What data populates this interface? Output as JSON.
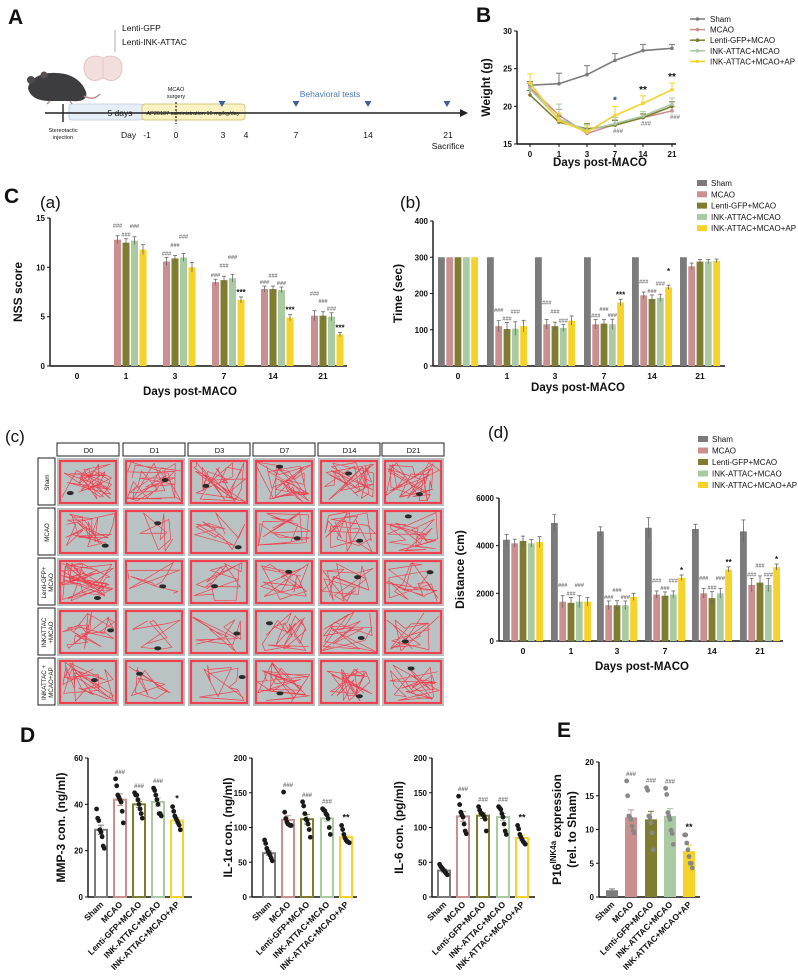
{
  "panel_labels": {
    "A": "A",
    "B": "B",
    "C": "C",
    "Ca": "(a)",
    "Cb": "(b)",
    "Cc": "(c)",
    "Cd": "(d)",
    "D": "D",
    "E": "E"
  },
  "panel_a": {
    "virus_1": "Lenti-GFP",
    "virus_2": "Lenti-INK-ATTAC",
    "injection_1": "Stereotactic",
    "injection_2": "injection",
    "five_days": "5 days",
    "ap_admin": "AP20187 administration 10 mg/kg/day",
    "surgery_1": "MCAO",
    "surgery_2": "surgery",
    "behavioral": "Behavioral tests",
    "day_label": "Day",
    "days": [
      "-1",
      "0",
      "3",
      "4",
      "7",
      "14",
      "21"
    ],
    "sacrifice": "Sacrifice",
    "colors": {
      "timeline_box": "#e6eef8",
      "ap_box": "#fbf3c4",
      "behavioral": "#4a78b5",
      "triangle": "#3d5f9e"
    }
  },
  "groups": {
    "names": [
      "Sham",
      "MCAO",
      "Lenti-GFP+MCAO",
      "INK-ATTAC+MCAO",
      "INK-ATTAC+MCAO+AP"
    ],
    "colors": [
      "#7b7b7b",
      "#c9908f",
      "#7f7d30",
      "#a9caa3",
      "#f6d32b"
    ]
  },
  "panel_c_grid": {
    "columns": [
      "D0",
      "D1",
      "D3",
      "D7",
      "D14",
      "D21"
    ],
    "rows": [
      [
        "Sham"
      ],
      [
        "MCAO"
      ],
      [
        "Lenti-GFP+",
        "MCAO"
      ],
      [
        "INKATTAC",
        "+MCAO"
      ],
      [
        "INKATTAC +",
        "MCAO+AP"
      ]
    ],
    "track_color": "#f0404f",
    "arena_color": "#b9c3c3"
  },
  "chart_data": [
    {
      "id": "B",
      "type": "line",
      "xlabel": "Days post-MACO",
      "ylabel": "Weight (g)",
      "categories": [
        "0",
        "1",
        "3",
        "7",
        "14",
        "21"
      ],
      "ylim": [
        15,
        30
      ],
      "yticks": [
        15,
        20,
        25,
        30
      ],
      "legend": "top-right",
      "series": [
        {
          "name": "Sham",
          "color": "#7b7b7b",
          "values": [
            22.8,
            23.0,
            24.2,
            26.1,
            27.4,
            27.7
          ],
          "err": [
            0.5,
            1.4,
            1.2,
            0.9,
            0.8,
            0.5
          ]
        },
        {
          "name": "MCAO",
          "color": "#c9908f",
          "values": [
            22.5,
            18.8,
            16.4,
            17.6,
            18.5,
            19.4
          ],
          "err": [
            0.6,
            0.8,
            0.6,
            0.6,
            0.5,
            0.6
          ]
        },
        {
          "name": "Lenti-GFP+MCAO",
          "color": "#7f7d30",
          "values": [
            21.5,
            17.9,
            17.0,
            17.5,
            18.5,
            20.0
          ],
          "err": [
            0.6,
            0.8,
            0.7,
            0.6,
            0.5,
            0.6
          ]
        },
        {
          "name": "INK-ATTAC+MCAO",
          "color": "#a9caa3",
          "values": [
            22.3,
            18.3,
            16.8,
            17.7,
            18.7,
            20.3
          ],
          "err": [
            0.7,
            2.0,
            0.8,
            0.8,
            0.6,
            0.8
          ]
        },
        {
          "name": "INK-ATTAC+MCAO+AP",
          "color": "#f6d32b",
          "values": [
            23.1,
            18.1,
            16.6,
            18.8,
            20.4,
            22.2
          ],
          "err": [
            1.2,
            1.0,
            0.8,
            1.2,
            1.0,
            0.9
          ]
        }
      ],
      "annotations_top": [
        "",
        "",
        "",
        "*",
        "**",
        "**"
      ],
      "annotations_bottom": [
        "",
        "",
        "",
        "###",
        "###",
        "###"
      ]
    },
    {
      "id": "Ca",
      "type": "bar",
      "xlabel": "Days post-MACO",
      "ylabel": "NSS score",
      "categories": [
        "0",
        "1",
        "3",
        "7",
        "14",
        "21"
      ],
      "ylim": [
        0,
        15
      ],
      "yticks": [
        0,
        5,
        10,
        15
      ],
      "series": [
        {
          "name": "Sham",
          "color": "#7b7b7b",
          "values": [
            0,
            0,
            0,
            0,
            0,
            0
          ],
          "err": [
            0,
            0,
            0,
            0,
            0,
            0
          ],
          "annotations": [
            "",
            "",
            "",
            "",
            "",
            ""
          ]
        },
        {
          "name": "MCAO",
          "color": "#c9908f",
          "values": [
            0,
            12.8,
            10.6,
            8.5,
            7.8,
            5.1
          ],
          "err": [
            0,
            0.4,
            0.4,
            0.3,
            0.3,
            0.5
          ],
          "annotations": [
            "",
            "###",
            "###",
            "###",
            "###",
            "###"
          ]
        },
        {
          "name": "Lenti-GFP+MCAO",
          "color": "#7f7d30",
          "values": [
            0,
            12.5,
            10.9,
            8.7,
            7.8,
            5.1
          ],
          "err": [
            0,
            0.4,
            0.3,
            0.4,
            0.3,
            0.4
          ],
          "annotations": [
            "",
            "###",
            "###",
            "###",
            "###",
            "###"
          ]
        },
        {
          "name": "INK-ATTAC+MCAO",
          "color": "#a9caa3",
          "values": [
            0,
            12.7,
            11.0,
            8.9,
            7.7,
            5.0
          ],
          "err": [
            0,
            0.4,
            0.4,
            0.4,
            0.3,
            0.4
          ],
          "annotations": [
            "",
            "###",
            "###",
            "###",
            "###",
            "###"
          ]
        },
        {
          "name": "INK-ATTAC+MCAO+AP",
          "color": "#f6d32b",
          "values": [
            0,
            11.8,
            10.0,
            6.7,
            4.9,
            3.2
          ],
          "err": [
            0,
            0.5,
            0.5,
            0.3,
            0.3,
            0.2
          ],
          "annotations": [
            "",
            "",
            "",
            "***",
            "***",
            "***"
          ]
        }
      ]
    },
    {
      "id": "Cb",
      "type": "bar",
      "xlabel": "Days post-MACO",
      "ylabel": "Time (sec)",
      "categories": [
        "0",
        "1",
        "3",
        "7",
        "14",
        "21"
      ],
      "ylim": [
        0,
        400
      ],
      "yticks": [
        0,
        100,
        200,
        300,
        400
      ],
      "legend": "top-right",
      "series": [
        {
          "name": "Sham",
          "color": "#7b7b7b",
          "values": [
            300,
            300,
            300,
            300,
            300,
            300
          ],
          "err": [
            0,
            0,
            0,
            0,
            0,
            0
          ],
          "annotations": [
            "",
            "",
            "",
            "",
            "",
            ""
          ]
        },
        {
          "name": "MCAO",
          "color": "#c9908f",
          "values": [
            300,
            110,
            115,
            115,
            195,
            275
          ],
          "err": [
            0,
            15,
            13,
            13,
            9,
            9
          ],
          "annotations": [
            "",
            "###",
            "###",
            "###",
            "###",
            ""
          ]
        },
        {
          "name": "Lenti-GFP+MCAO",
          "color": "#7f7d30",
          "values": [
            300,
            102,
            110,
            117,
            185,
            288
          ],
          "err": [
            0,
            18,
            11,
            11,
            11,
            6
          ],
          "annotations": [
            "",
            "###",
            "###",
            "###",
            "###",
            ""
          ]
        },
        {
          "name": "INK-ATTAC+MCAO",
          "color": "#a9caa3",
          "values": [
            300,
            103,
            105,
            115,
            188,
            288
          ],
          "err": [
            0,
            19,
            10,
            14,
            10,
            6
          ],
          "annotations": [
            "",
            "###",
            "###",
            "###",
            "###",
            ""
          ]
        },
        {
          "name": "INK-ATTAC+MCAO+AP",
          "color": "#f6d32b",
          "values": [
            300,
            110,
            125,
            175,
            217,
            290
          ],
          "err": [
            0,
            16,
            13,
            9,
            6,
            5
          ],
          "annotations": [
            "",
            "",
            "",
            "***",
            "*",
            ""
          ]
        }
      ]
    },
    {
      "id": "Cd",
      "type": "bar",
      "xlabel": "Days post-MACO",
      "ylabel": "Distance (cm)",
      "categories": [
        "0",
        "1",
        "3",
        "7",
        "14",
        "21"
      ],
      "ylim": [
        0,
        6000
      ],
      "yticks": [
        0,
        2000,
        4000,
        6000
      ],
      "legend": "top-right",
      "series": [
        {
          "name": "Sham",
          "color": "#7b7b7b",
          "values": [
            4250,
            4950,
            4600,
            4750,
            4700,
            4600
          ],
          "err": [
            220,
            350,
            190,
            420,
            200,
            480
          ],
          "annotations": [
            "",
            "",
            "",
            "",
            "",
            ""
          ]
        },
        {
          "name": "MCAO",
          "color": "#c9908f",
          "values": [
            4100,
            1650,
            1500,
            1950,
            2000,
            2350
          ],
          "err": [
            170,
            250,
            180,
            150,
            200,
            280
          ],
          "annotations": [
            "",
            "###",
            "###",
            "###",
            "###",
            "###"
          ]
        },
        {
          "name": "Lenti-GFP+MCAO",
          "color": "#7f7d30",
          "values": [
            4200,
            1600,
            1500,
            1900,
            1800,
            2450
          ],
          "err": [
            200,
            230,
            190,
            160,
            270,
            280
          ],
          "annotations": [
            "",
            "###",
            "###",
            "###",
            "###",
            "###"
          ]
        },
        {
          "name": "INK-ATTAC+MCAO",
          "color": "#a9caa3",
          "values": [
            4100,
            1650,
            1500,
            1950,
            2000,
            2350
          ],
          "err": [
            160,
            250,
            180,
            150,
            200,
            280
          ],
          "annotations": [
            "",
            "###",
            "###",
            "###",
            "###",
            "###"
          ]
        },
        {
          "name": "INK-ATTAC+MCAO+AP",
          "color": "#f6d32b",
          "values": [
            4150,
            1650,
            1850,
            2650,
            3000,
            3100
          ],
          "err": [
            230,
            180,
            150,
            120,
            110,
            130
          ],
          "annotations": [
            "",
            "",
            "",
            "*",
            "**",
            "*"
          ]
        }
      ]
    },
    {
      "id": "D1",
      "type": "bar_scatter",
      "ylabel": "MMP-3 con. (ng/ml)",
      "categories": [
        "Sham",
        "MCAO",
        "Lenti-GFP+MCAO",
        "INK-ATTAC+MCAO",
        "INK-ATTAC+MCAO+AP"
      ],
      "ylim": [
        0,
        60
      ],
      "yticks": [
        0,
        20,
        40,
        60
      ],
      "values": [
        29,
        42,
        40,
        41,
        33
      ],
      "err": [
        2,
        2.5,
        1.3,
        1.8,
        1.2
      ],
      "points": [
        [
          38,
          34,
          33,
          29,
          28,
          26,
          22,
          21
        ],
        [
          51,
          48,
          44,
          43,
          42,
          41,
          37,
          32
        ],
        [
          45,
          44,
          44,
          42,
          40,
          38,
          36,
          34
        ],
        [
          47,
          46,
          44,
          42,
          40,
          36,
          36,
          35
        ],
        [
          39,
          37,
          35,
          34,
          33,
          32,
          31,
          29
        ]
      ],
      "annotations": [
        "",
        "###",
        "###",
        "###",
        "*"
      ]
    },
    {
      "id": "D2",
      "type": "bar_scatter",
      "ylabel": "IL-1α con. (ng/ml)",
      "categories": [
        "Sham",
        "MCAO",
        "Lenti-GFP+MCAO",
        "INK-ATTAC+MCAO",
        "INK-ATTAC+MCAO+AP"
      ],
      "ylim": [
        0,
        200
      ],
      "yticks": [
        0,
        50,
        100,
        150,
        200
      ],
      "values": [
        63,
        111,
        112,
        113,
        86
      ],
      "err": [
        3,
        6,
        7,
        4,
        3
      ],
      "points": [
        [
          82,
          77,
          70,
          66,
          63,
          60,
          56,
          52
        ],
        [
          151,
          122,
          113,
          108,
          105,
          104,
          103,
          103
        ],
        [
          137,
          131,
          120,
          112,
          110,
          105,
          97,
          86
        ],
        [
          127,
          125,
          124,
          120,
          118,
          113,
          100,
          90
        ],
        [
          103,
          97,
          90,
          85,
          82,
          80,
          79,
          78
        ]
      ],
      "annotations": [
        "",
        "###",
        "###",
        "###",
        "**"
      ]
    },
    {
      "id": "D3",
      "type": "bar_scatter",
      "ylabel": "IL-6 con. (pg/ml)",
      "categories": [
        "Sham",
        "MCAO",
        "Lenti-GFP+MCAO",
        "INK-ATTAC+MCAO",
        "INK-ATTAC+MCAO+AP"
      ],
      "ylim": [
        0,
        200
      ],
      "yticks": [
        0,
        50,
        100,
        150,
        200
      ],
      "values": [
        38,
        116,
        117,
        115,
        85
      ],
      "err": [
        2,
        7,
        4,
        5,
        4
      ],
      "points": [
        [
          47,
          44,
          42,
          40,
          38,
          36,
          34,
          32
        ],
        [
          145,
          133,
          122,
          118,
          115,
          105,
          95,
          91
        ],
        [
          130,
          125,
          121,
          120,
          118,
          116,
          112,
          95
        ],
        [
          130,
          128,
          126,
          120,
          115,
          105,
          95,
          90
        ],
        [
          103,
          98,
          90,
          86,
          83,
          80,
          78,
          76
        ]
      ],
      "annotations": [
        "",
        "###",
        "###",
        "###",
        "**"
      ]
    },
    {
      "id": "E",
      "type": "bar_scatter",
      "ylabel_parts": [
        "P16",
        "INK4a",
        " expression"
      ],
      "ylabel_line2": "(rel. to Sham)",
      "categories": [
        "Sham",
        "MCAO",
        "Lenti-GFP+MCAO",
        "INK-ATTAC+MCAO",
        "INK-ATTAC+MCAO+AP"
      ],
      "ylim": [
        0,
        20
      ],
      "yticks": [
        0,
        5,
        10,
        15,
        20
      ],
      "values": [
        1,
        11.8,
        11.5,
        12,
        6.8
      ],
      "err": [
        0.2,
        1.1,
        1.2,
        1.1,
        0.9
      ],
      "points": [
        [],
        [
          17.2,
          15,
          12,
          11.8,
          11.5,
          10.5,
          9.8,
          9.5
        ],
        [
          16.2,
          15.8,
          12,
          11.8,
          11,
          9.5,
          7
        ],
        [
          16.1,
          15.2,
          12.5,
          12,
          11.5,
          9.9,
          9.4,
          7.8
        ],
        [
          9.2,
          9.2,
          8,
          7,
          6,
          5,
          5,
          4.3
        ]
      ],
      "annotations": [
        "",
        "###",
        "###",
        "###",
        "**"
      ]
    }
  ]
}
